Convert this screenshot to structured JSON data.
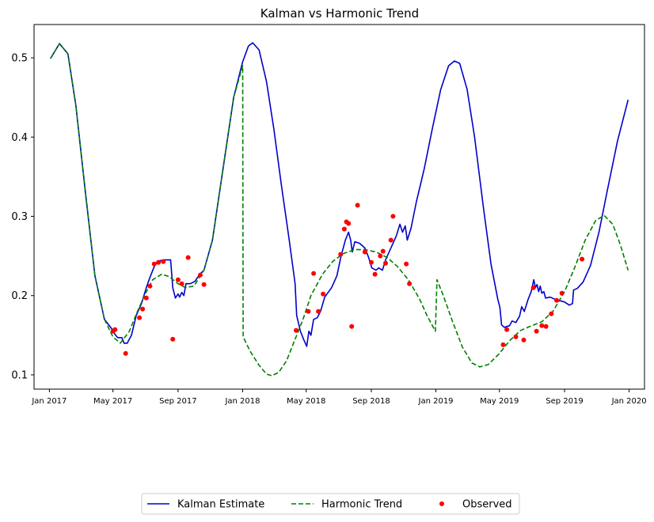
{
  "chart_data": {
    "type": "line",
    "title": "Kalman vs Harmonic Trend",
    "xlabel": "",
    "ylabel": "",
    "x_axis": {
      "type": "date",
      "range": [
        "2016-12-03",
        "2020-01-30"
      ],
      "ticks": [
        {
          "date": "2017-01-01",
          "label": "Jan 2017"
        },
        {
          "date": "2017-05-01",
          "label": "May 2017"
        },
        {
          "date": "2017-09-01",
          "label": "Sep 2017"
        },
        {
          "date": "2018-01-01",
          "label": "Jan 2018"
        },
        {
          "date": "2018-05-01",
          "label": "May 2018"
        },
        {
          "date": "2018-09-01",
          "label": "Sep 2018"
        },
        {
          "date": "2019-01-01",
          "label": "Jan 2019"
        },
        {
          "date": "2019-05-01",
          "label": "May 2019"
        },
        {
          "date": "2019-09-01",
          "label": "Sep 2019"
        },
        {
          "date": "2020-01-01",
          "label": "Jan 2020"
        }
      ]
    },
    "y_axis": {
      "range": [
        0.082,
        0.542
      ],
      "ticks": [
        0.1,
        0.2,
        0.3,
        0.4,
        0.5
      ],
      "tick_labels": [
        "0.1",
        "0.2",
        "0.3",
        "0.4",
        "0.5"
      ]
    },
    "grid": false,
    "legend": {
      "placement": "bottom-center"
    },
    "series": [
      {
        "name": "Kalman Estimate",
        "style": "solid",
        "color": "#0000cc",
        "points": [
          [
            "2017-01-03",
            0.499
          ],
          [
            "2017-01-20",
            0.518
          ],
          [
            "2017-02-05",
            0.505
          ],
          [
            "2017-02-20",
            0.44
          ],
          [
            "2017-03-10",
            0.33
          ],
          [
            "2017-03-28",
            0.225
          ],
          [
            "2017-04-15",
            0.17
          ],
          [
            "2017-04-30",
            0.157
          ],
          [
            "2017-05-05",
            0.151
          ],
          [
            "2017-05-10",
            0.147
          ],
          [
            "2017-05-18",
            0.147
          ],
          [
            "2017-05-22",
            0.14
          ],
          [
            "2017-05-28",
            0.14
          ],
          [
            "2017-06-05",
            0.15
          ],
          [
            "2017-06-14",
            0.175
          ],
          [
            "2017-06-24",
            0.19
          ],
          [
            "2017-07-03",
            0.21
          ],
          [
            "2017-07-10",
            0.223
          ],
          [
            "2017-07-20",
            0.24
          ],
          [
            "2017-07-28",
            0.244
          ],
          [
            "2017-08-05",
            0.245
          ],
          [
            "2017-08-18",
            0.245
          ],
          [
            "2017-08-22",
            0.21
          ],
          [
            "2017-08-27",
            0.197
          ],
          [
            "2017-09-01",
            0.202
          ],
          [
            "2017-09-04",
            0.198
          ],
          [
            "2017-09-08",
            0.204
          ],
          [
            "2017-09-12",
            0.2
          ],
          [
            "2017-09-16",
            0.215
          ],
          [
            "2017-09-24",
            0.215
          ],
          [
            "2017-10-03",
            0.218
          ],
          [
            "2017-10-12",
            0.227
          ],
          [
            "2017-10-20",
            0.232
          ],
          [
            "2017-11-05",
            0.27
          ],
          [
            "2017-11-25",
            0.36
          ],
          [
            "2017-12-15",
            0.45
          ],
          [
            "2018-01-01",
            0.495
          ],
          [
            "2018-01-12",
            0.515
          ],
          [
            "2018-01-20",
            0.519
          ],
          [
            "2018-02-01",
            0.51
          ],
          [
            "2018-02-15",
            0.47
          ],
          [
            "2018-03-01",
            0.41
          ],
          [
            "2018-03-15",
            0.34
          ],
          [
            "2018-03-30",
            0.27
          ],
          [
            "2018-04-10",
            0.215
          ],
          [
            "2018-04-13",
            0.175
          ],
          [
            "2018-04-20",
            0.155
          ],
          [
            "2018-04-26",
            0.145
          ],
          [
            "2018-05-02",
            0.136
          ],
          [
            "2018-05-06",
            0.155
          ],
          [
            "2018-05-10",
            0.15
          ],
          [
            "2018-05-15",
            0.17
          ],
          [
            "2018-05-22",
            0.172
          ],
          [
            "2018-05-28",
            0.18
          ],
          [
            "2018-06-05",
            0.198
          ],
          [
            "2018-06-18",
            0.21
          ],
          [
            "2018-06-28",
            0.225
          ],
          [
            "2018-07-06",
            0.25
          ],
          [
            "2018-07-14",
            0.27
          ],
          [
            "2018-07-20",
            0.28
          ],
          [
            "2018-07-24",
            0.27
          ],
          [
            "2018-07-27",
            0.255
          ],
          [
            "2018-08-01",
            0.268
          ],
          [
            "2018-08-10",
            0.266
          ],
          [
            "2018-08-20",
            0.26
          ],
          [
            "2018-08-27",
            0.248
          ],
          [
            "2018-09-02",
            0.235
          ],
          [
            "2018-09-10",
            0.232
          ],
          [
            "2018-09-15",
            0.235
          ],
          [
            "2018-09-22",
            0.232
          ],
          [
            "2018-09-28",
            0.245
          ],
          [
            "2018-10-08",
            0.26
          ],
          [
            "2018-10-18",
            0.275
          ],
          [
            "2018-10-25",
            0.29
          ],
          [
            "2018-10-30",
            0.28
          ],
          [
            "2018-11-04",
            0.288
          ],
          [
            "2018-11-08",
            0.27
          ],
          [
            "2018-11-15",
            0.285
          ],
          [
            "2018-11-25",
            0.318
          ],
          [
            "2018-12-10",
            0.36
          ],
          [
            "2018-12-25",
            0.41
          ],
          [
            "2019-01-10",
            0.46
          ],
          [
            "2019-01-25",
            0.49
          ],
          [
            "2019-02-05",
            0.496
          ],
          [
            "2019-02-15",
            0.493
          ],
          [
            "2019-03-01",
            0.46
          ],
          [
            "2019-03-15",
            0.4
          ],
          [
            "2019-04-01",
            0.31
          ],
          [
            "2019-04-15",
            0.24
          ],
          [
            "2019-04-28",
            0.195
          ],
          [
            "2019-05-02",
            0.185
          ],
          [
            "2019-05-05",
            0.163
          ],
          [
            "2019-05-10",
            0.16
          ],
          [
            "2019-05-20",
            0.162
          ],
          [
            "2019-05-25",
            0.168
          ],
          [
            "2019-06-01",
            0.166
          ],
          [
            "2019-06-08",
            0.174
          ],
          [
            "2019-06-12",
            0.186
          ],
          [
            "2019-06-17",
            0.18
          ],
          [
            "2019-06-24",
            0.195
          ],
          [
            "2019-06-30",
            0.205
          ],
          [
            "2019-07-05",
            0.22
          ],
          [
            "2019-07-08",
            0.21
          ],
          [
            "2019-07-11",
            0.214
          ],
          [
            "2019-07-14",
            0.205
          ],
          [
            "2019-07-17",
            0.212
          ],
          [
            "2019-07-20",
            0.203
          ],
          [
            "2019-07-24",
            0.205
          ],
          [
            "2019-07-27",
            0.197
          ],
          [
            "2019-08-05",
            0.198
          ],
          [
            "2019-08-15",
            0.195
          ],
          [
            "2019-09-01",
            0.192
          ],
          [
            "2019-09-10",
            0.188
          ],
          [
            "2019-09-16",
            0.19
          ],
          [
            "2019-09-18",
            0.207
          ],
          [
            "2019-09-25",
            0.209
          ],
          [
            "2019-10-06",
            0.217
          ],
          [
            "2019-10-20",
            0.238
          ],
          [
            "2019-11-05",
            0.28
          ],
          [
            "2019-11-20",
            0.33
          ],
          [
            "2019-12-10",
            0.395
          ],
          [
            "2019-12-30",
            0.447
          ]
        ]
      },
      {
        "name": "Harmonic Trend",
        "style": "dashed",
        "color": "#008000",
        "points": [
          [
            "2017-01-03",
            0.499
          ],
          [
            "2017-01-20",
            0.518
          ],
          [
            "2017-02-05",
            0.505
          ],
          [
            "2017-02-20",
            0.44
          ],
          [
            "2017-03-10",
            0.33
          ],
          [
            "2017-03-28",
            0.225
          ],
          [
            "2017-04-15",
            0.17
          ],
          [
            "2017-05-01",
            0.148
          ],
          [
            "2017-05-15",
            0.14
          ],
          [
            "2017-06-01",
            0.155
          ],
          [
            "2017-06-15",
            0.178
          ],
          [
            "2017-07-01",
            0.202
          ],
          [
            "2017-07-15",
            0.22
          ],
          [
            "2017-08-01",
            0.227
          ],
          [
            "2017-08-15",
            0.224
          ],
          [
            "2017-09-01",
            0.215
          ],
          [
            "2017-09-15",
            0.21
          ],
          [
            "2017-10-01",
            0.212
          ],
          [
            "2017-10-20",
            0.232
          ],
          [
            "2017-11-05",
            0.27
          ],
          [
            "2017-11-25",
            0.36
          ],
          [
            "2017-12-15",
            0.45
          ],
          [
            "2018-01-01",
            0.49
          ],
          [
            "2018-01-02",
            0.148
          ],
          [
            "2018-01-15",
            0.13
          ],
          [
            "2018-02-01",
            0.112
          ],
          [
            "2018-02-15",
            0.101
          ],
          [
            "2018-02-25",
            0.099
          ],
          [
            "2018-03-10",
            0.103
          ],
          [
            "2018-03-25",
            0.118
          ],
          [
            "2018-04-10",
            0.145
          ],
          [
            "2018-04-25",
            0.17
          ],
          [
            "2018-05-10",
            0.2
          ],
          [
            "2018-06-01",
            0.227
          ],
          [
            "2018-06-20",
            0.243
          ],
          [
            "2018-07-10",
            0.253
          ],
          [
            "2018-08-01",
            0.258
          ],
          [
            "2018-08-20",
            0.258
          ],
          [
            "2018-09-10",
            0.255
          ],
          [
            "2018-10-01",
            0.248
          ],
          [
            "2018-10-20",
            0.237
          ],
          [
            "2018-11-10",
            0.22
          ],
          [
            "2018-12-01",
            0.196
          ],
          [
            "2018-12-15",
            0.175
          ],
          [
            "2018-12-31",
            0.155
          ],
          [
            "2019-01-03",
            0.22
          ],
          [
            "2019-01-15",
            0.2
          ],
          [
            "2019-02-01",
            0.168
          ],
          [
            "2019-02-20",
            0.135
          ],
          [
            "2019-03-10",
            0.115
          ],
          [
            "2019-03-25",
            0.11
          ],
          [
            "2019-04-10",
            0.113
          ],
          [
            "2019-05-01",
            0.127
          ],
          [
            "2019-05-20",
            0.143
          ],
          [
            "2019-06-10",
            0.156
          ],
          [
            "2019-07-01",
            0.162
          ],
          [
            "2019-07-20",
            0.167
          ],
          [
            "2019-08-10",
            0.18
          ],
          [
            "2019-09-01",
            0.205
          ],
          [
            "2019-09-20",
            0.235
          ],
          [
            "2019-10-10",
            0.27
          ],
          [
            "2019-10-30",
            0.295
          ],
          [
            "2019-11-15",
            0.301
          ],
          [
            "2019-12-01",
            0.29
          ],
          [
            "2019-12-15",
            0.265
          ],
          [
            "2019-12-30",
            0.232
          ]
        ]
      },
      {
        "name": "Observed",
        "style": "markers",
        "color": "#ff0000",
        "points": [
          [
            "2017-05-01",
            0.155
          ],
          [
            "2017-05-05",
            0.157
          ],
          [
            "2017-05-25",
            0.127
          ],
          [
            "2017-06-20",
            0.172
          ],
          [
            "2017-06-26",
            0.183
          ],
          [
            "2017-07-03",
            0.197
          ],
          [
            "2017-07-10",
            0.212
          ],
          [
            "2017-07-18",
            0.24
          ],
          [
            "2017-07-26",
            0.242
          ],
          [
            "2017-08-04",
            0.243
          ],
          [
            "2017-08-22",
            0.145
          ],
          [
            "2017-09-01",
            0.22
          ],
          [
            "2017-09-08",
            0.215
          ],
          [
            "2017-09-20",
            0.248
          ],
          [
            "2017-10-13",
            0.226
          ],
          [
            "2017-10-20",
            0.214
          ],
          [
            "2018-04-12",
            0.156
          ],
          [
            "2018-05-05",
            0.18
          ],
          [
            "2018-05-15",
            0.228
          ],
          [
            "2018-05-24",
            0.18
          ],
          [
            "2018-06-02",
            0.202
          ],
          [
            "2018-07-05",
            0.252
          ],
          [
            "2018-07-12",
            0.284
          ],
          [
            "2018-07-16",
            0.293
          ],
          [
            "2018-07-20",
            0.291
          ],
          [
            "2018-07-26",
            0.161
          ],
          [
            "2018-08-06",
            0.314
          ],
          [
            "2018-08-20",
            0.255
          ],
          [
            "2018-09-01",
            0.242
          ],
          [
            "2018-09-08",
            0.227
          ],
          [
            "2018-09-18",
            0.25
          ],
          [
            "2018-09-23",
            0.256
          ],
          [
            "2018-09-28",
            0.241
          ],
          [
            "2018-10-08",
            0.27
          ],
          [
            "2018-10-12",
            0.3
          ],
          [
            "2018-11-06",
            0.24
          ],
          [
            "2018-11-12",
            0.215
          ],
          [
            "2019-05-08",
            0.138
          ],
          [
            "2019-05-15",
            0.157
          ],
          [
            "2019-06-01",
            0.148
          ],
          [
            "2019-06-16",
            0.144
          ],
          [
            "2019-07-04",
            0.21
          ],
          [
            "2019-07-10",
            0.155
          ],
          [
            "2019-07-20",
            0.162
          ],
          [
            "2019-07-28",
            0.161
          ],
          [
            "2019-08-07",
            0.177
          ],
          [
            "2019-08-17",
            0.194
          ],
          [
            "2019-08-27",
            0.203
          ],
          [
            "2019-10-04",
            0.246
          ]
        ]
      }
    ]
  }
}
